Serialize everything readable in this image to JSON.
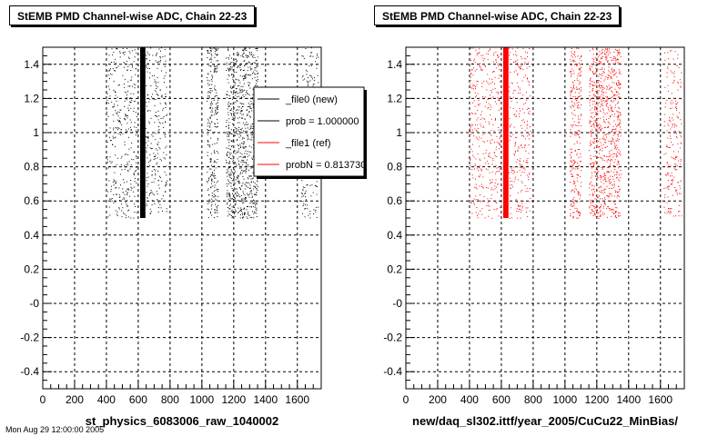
{
  "chart_data": [
    {
      "type": "scatter",
      "title": "StEMB PMD Channel-wise ADC, Chain 22-23",
      "xlabel": "st_physics_6083006_raw_1040002",
      "ylabel": "",
      "xlim": [
        0,
        1750
      ],
      "ylim": [
        -0.5,
        1.5
      ],
      "x_ticks": [
        0,
        200,
        400,
        600,
        800,
        1000,
        1200,
        1400,
        1600
      ],
      "y_ticks": [
        "-0.4",
        "-0.2",
        "-0",
        "0.2",
        "0.4",
        "0.6",
        "0.8",
        "1",
        "1.2",
        "1.4"
      ],
      "y_tick_values": [
        -0.4,
        -0.2,
        0,
        0.2,
        0.4,
        0.6,
        0.8,
        1.0,
        1.2,
        1.4
      ],
      "grid": true,
      "marker_color": "#000000",
      "y_range_of_points": [
        0.5,
        1.5
      ],
      "bands": [
        {
          "x_start": 400,
          "x_end": 590,
          "density": "medium"
        },
        {
          "x_start": 612,
          "x_end": 645,
          "density": "solid"
        },
        {
          "x_start": 645,
          "x_end": 780,
          "density": "medium"
        },
        {
          "x_start": 1030,
          "x_end": 1065,
          "density": "high"
        },
        {
          "x_start": 1070,
          "x_end": 1100,
          "density": "high"
        },
        {
          "x_start": 1150,
          "x_end": 1350,
          "density": "high"
        },
        {
          "x_start": 1620,
          "x_end": 1730,
          "density": "medium"
        }
      ],
      "legend": {
        "position": "top-right",
        "entries": [
          {
            "label": "_file0 (new)",
            "color": "#000000"
          },
          {
            "label": "prob = 1.000000",
            "color": "#000000"
          },
          {
            "label": "_file1 (ref)",
            "color": "#ff0000"
          },
          {
            "label": "probN = 0.813730",
            "color": "#ff0000"
          }
        ]
      }
    },
    {
      "type": "scatter",
      "title": "StEMB PMD Channel-wise ADC, Chain 22-23",
      "xlabel": "new/daq_sl302.ittf/year_2005/CuCu22_MinBias/",
      "ylabel": "",
      "xlim": [
        0,
        1750
      ],
      "ylim": [
        -0.5,
        1.5
      ],
      "x_ticks": [
        0,
        200,
        400,
        600,
        800,
        1000,
        1200,
        1400,
        1600
      ],
      "y_ticks": [
        "-0.4",
        "-0.2",
        "-0",
        "0.2",
        "0.4",
        "0.6",
        "0.8",
        "1",
        "1.2",
        "1.4"
      ],
      "y_tick_values": [
        -0.4,
        -0.2,
        0,
        0.2,
        0.4,
        0.6,
        0.8,
        1.0,
        1.2,
        1.4
      ],
      "grid": true,
      "marker_color": "#ff0000",
      "y_range_of_points": [
        0.5,
        1.5
      ],
      "bands": [
        {
          "x_start": 400,
          "x_end": 590,
          "density": "medium"
        },
        {
          "x_start": 612,
          "x_end": 645,
          "density": "solid"
        },
        {
          "x_start": 645,
          "x_end": 780,
          "density": "medium"
        },
        {
          "x_start": 1030,
          "x_end": 1065,
          "density": "high"
        },
        {
          "x_start": 1070,
          "x_end": 1100,
          "density": "high"
        },
        {
          "x_start": 1150,
          "x_end": 1350,
          "density": "high"
        },
        {
          "x_start": 1620,
          "x_end": 1730,
          "density": "medium"
        }
      ]
    }
  ],
  "footer": "Mon Aug 29 12:00:00 2005"
}
